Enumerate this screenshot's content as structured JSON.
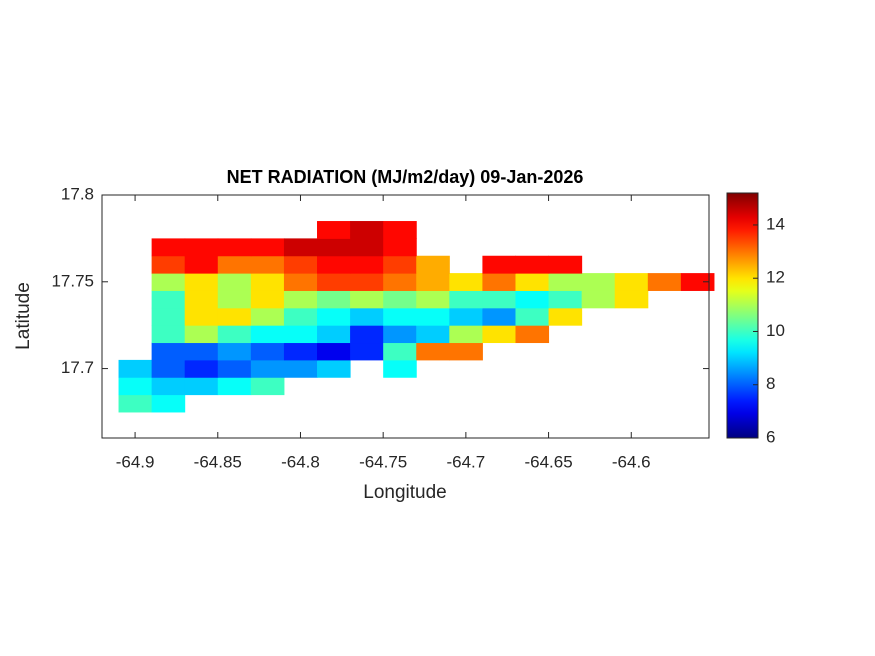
{
  "chart_data": {
    "type": "heatmap",
    "title": "NET RADIATION (MJ/m2/day) 09-Jan-2026",
    "xlabel": "Longitude",
    "ylabel": "Latitude",
    "x": [
      -64.9,
      -64.88,
      -64.86,
      -64.84,
      -64.82,
      -64.8,
      -64.78,
      -64.76,
      -64.74,
      -64.72,
      -64.7,
      -64.68,
      -64.66,
      -64.64,
      -64.62,
      -64.6,
      -64.58,
      -64.56
    ],
    "y": [
      17.68,
      17.69,
      17.7,
      17.71,
      17.72,
      17.73,
      17.74,
      17.75,
      17.76,
      17.77,
      17.78
    ],
    "z": [
      [
        10,
        9.5,
        null,
        null,
        null,
        null,
        null,
        null,
        null,
        null,
        null,
        null,
        null,
        null,
        null,
        null,
        null,
        null
      ],
      [
        9.5,
        9,
        9,
        9.5,
        10,
        null,
        null,
        null,
        null,
        null,
        null,
        null,
        null,
        null,
        null,
        null,
        null,
        null
      ],
      [
        9,
        8,
        7.5,
        8,
        8.5,
        8.5,
        9,
        null,
        9.5,
        null,
        null,
        null,
        null,
        null,
        null,
        null,
        null,
        null
      ],
      [
        null,
        8,
        8,
        8.5,
        8,
        7.5,
        7,
        7.5,
        10,
        13,
        13,
        null,
        null,
        null,
        null,
        null,
        null,
        null
      ],
      [
        null,
        10,
        11,
        10,
        9.5,
        9.5,
        9,
        7.5,
        8.5,
        9,
        11,
        12,
        13,
        null,
        null,
        null,
        null,
        null
      ],
      [
        null,
        10,
        12,
        12,
        11,
        10,
        9.5,
        9,
        9.5,
        9.5,
        9,
        8.5,
        10,
        12,
        null,
        null,
        null,
        null
      ],
      [
        null,
        10,
        12,
        11,
        12,
        11,
        10.5,
        11,
        10.5,
        11,
        10,
        10,
        9.5,
        10,
        11,
        12,
        null,
        null
      ],
      [
        null,
        11,
        12,
        11,
        12,
        13,
        13.5,
        13.5,
        13,
        12.5,
        12,
        13,
        12,
        11,
        11,
        12,
        13,
        14
      ],
      [
        null,
        13.5,
        14,
        13,
        13,
        13.5,
        14,
        14,
        13.5,
        12.5,
        null,
        14,
        14,
        14,
        null,
        null,
        null,
        null
      ],
      [
        null,
        14,
        14,
        14,
        14,
        14.5,
        14.5,
        14.5,
        14,
        null,
        null,
        null,
        null,
        null,
        null,
        null,
        null,
        null
      ],
      [
        null,
        null,
        null,
        null,
        null,
        null,
        14,
        14.5,
        14,
        null,
        null,
        null,
        null,
        null,
        null,
        null,
        null,
        null
      ]
    ],
    "xlim": [
      -64.92,
      -64.553
    ],
    "ylim": [
      17.66,
      17.8
    ],
    "xticks": [
      -64.9,
      -64.85,
      -64.8,
      -64.75,
      -64.7,
      -64.65,
      -64.6
    ],
    "yticks": [
      17.7,
      17.75,
      17.8
    ],
    "clim": [
      6,
      15.2
    ],
    "cticks": [
      6,
      8,
      10,
      12,
      14
    ],
    "colormap": "jet"
  }
}
